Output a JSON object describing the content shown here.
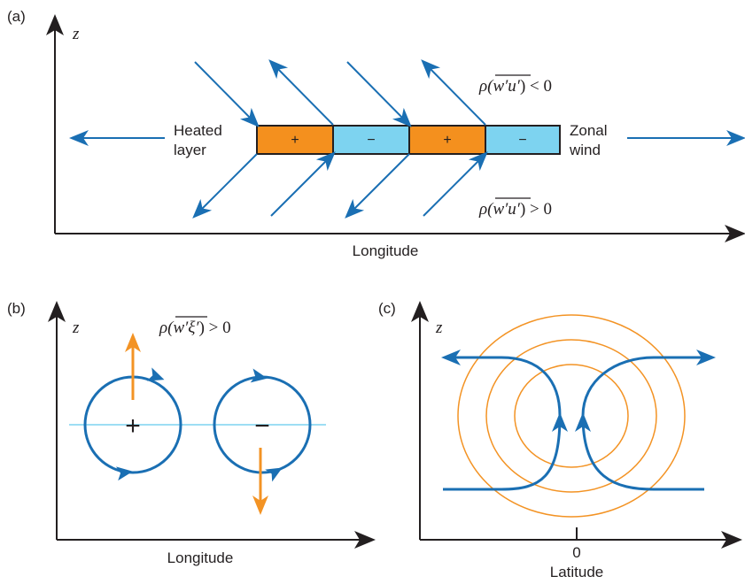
{
  "colors": {
    "blue": "#1a6fb3",
    "orange": "#f39324",
    "light_blue": "#7dd3f0",
    "orange_box": "#f4901e",
    "axis": "#231f20"
  },
  "panel_a": {
    "tag": "(a)",
    "z_label": "z",
    "x_label": "Longitude",
    "heated_line1": "Heated",
    "heated_line2": "layer",
    "zonal_line1": "Zonal",
    "zonal_line2": "wind",
    "flux_upper": {
      "rho": "ρ(",
      "var": "w′u′",
      "rel": ") < 0"
    },
    "flux_lower": {
      "rho": "ρ(",
      "var": "w′u′",
      "rel": ") > 0"
    },
    "boxes": [
      "+",
      "−",
      "+",
      "−"
    ]
  },
  "panel_b": {
    "tag": "(b)",
    "z_label": "z",
    "x_label": "Longitude",
    "flux": {
      "rho": "ρ(",
      "var": "w′ξ′",
      "rel": ") > 0"
    },
    "left_sign": "+",
    "right_sign": "−"
  },
  "panel_c": {
    "tag": "(c)",
    "z_label": "z",
    "x_label": "Latitude",
    "zero_tick": "0"
  }
}
